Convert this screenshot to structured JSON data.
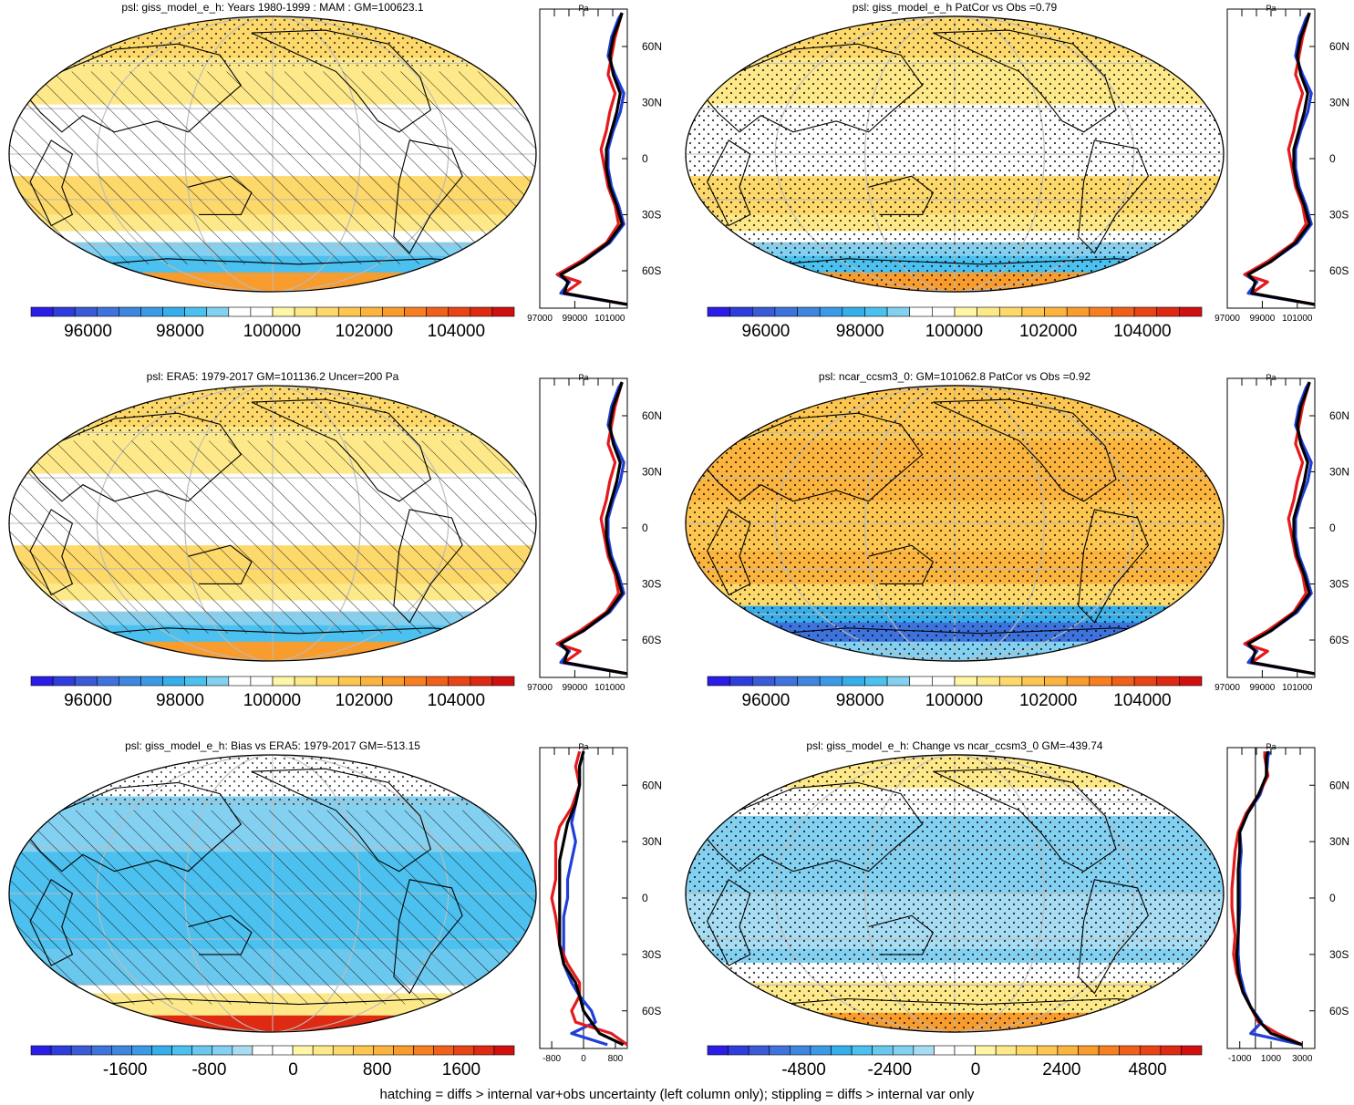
{
  "footnote": "hatching = diffs > internal var+obs uncertainty (left column only); stippling = diffs > internal var only",
  "zonal_axis": {
    "unit": "Pa",
    "lat_labels": [
      "60N",
      "30N",
      "0",
      "30S",
      "60S"
    ],
    "lat_values": [
      60,
      30,
      0,
      -30,
      -60
    ],
    "lat_range": [
      -80,
      80
    ]
  },
  "colors": {
    "model_line": "#e41a1c",
    "obs_line": "#1f3fd8",
    "mean_line": "#000000",
    "map_outline": "#000000",
    "grid": "#bbbbbb"
  },
  "panels": [
    {
      "title": "psl: giss_model_e_h: Years 1980-1999 : MAM : GM=100623.1",
      "kind": "abs",
      "hatch": true,
      "stipple": "partial",
      "colorbar": {
        "levels": [
          95000,
          95500,
          96000,
          96500,
          97000,
          97500,
          98000,
          98500,
          99000,
          99500,
          100000,
          100500,
          101000,
          101500,
          102000,
          102500,
          103000,
          103500,
          104000,
          104500,
          105000,
          105500
        ],
        "labels": [
          "96000",
          "98000",
          "100000",
          "102000",
          "104000"
        ],
        "label_values": [
          96000,
          98000,
          100000,
          102000,
          104000
        ]
      },
      "zonal": {
        "xlim": [
          97000,
          102000
        ],
        "xticks": [
          "97000",
          "99000",
          "101000"
        ],
        "xtick_values": [
          97000,
          99000,
          101000
        ],
        "zero_line": false
      }
    },
    {
      "title": "psl: giss_model_e_h PatCor vs Obs =0.79",
      "kind": "abs",
      "hatch": false,
      "stipple": "full",
      "colorbar": {
        "levels": [
          95000,
          95500,
          96000,
          96500,
          97000,
          97500,
          98000,
          98500,
          99000,
          99500,
          100000,
          100500,
          101000,
          101500,
          102000,
          102500,
          103000,
          103500,
          104000,
          104500,
          105000,
          105500
        ],
        "labels": [
          "96000",
          "98000",
          "100000",
          "102000",
          "104000"
        ],
        "label_values": [
          96000,
          98000,
          100000,
          102000,
          104000
        ]
      },
      "zonal": {
        "xlim": [
          97000,
          102000
        ],
        "xticks": [
          "97000",
          "99000",
          "101000"
        ],
        "xtick_values": [
          97000,
          99000,
          101000
        ],
        "zero_line": false
      }
    },
    {
      "title": "psl: ERA5: 1979-2017 GM=101136.2 Uncer=200 Pa",
      "kind": "abs",
      "hatch": true,
      "stipple": "partial",
      "colorbar": {
        "levels": [
          95000,
          95500,
          96000,
          96500,
          97000,
          97500,
          98000,
          98500,
          99000,
          99500,
          100000,
          100500,
          101000,
          101500,
          102000,
          102500,
          103000,
          103500,
          104000,
          104500,
          105000,
          105500
        ],
        "labels": [
          "96000",
          "98000",
          "100000",
          "102000",
          "104000"
        ],
        "label_values": [
          96000,
          98000,
          100000,
          102000,
          104000
        ]
      },
      "zonal": {
        "xlim": [
          97000,
          102000
        ],
        "xticks": [
          "97000",
          "99000",
          "101000"
        ],
        "xtick_values": [
          97000,
          99000,
          101000
        ],
        "zero_line": false
      }
    },
    {
      "title": "psl: ncar_ccsm3_0: GM=101062.8 PatCor vs Obs =0.92",
      "kind": "abs",
      "hatch": false,
      "stipple": "full",
      "colorbar": {
        "levels": [
          95000,
          95500,
          96000,
          96500,
          97000,
          97500,
          98000,
          98500,
          99000,
          99500,
          100000,
          100500,
          101000,
          101500,
          102000,
          102500,
          103000,
          103500,
          104000,
          104500,
          105000,
          105500
        ],
        "labels": [
          "96000",
          "98000",
          "100000",
          "102000",
          "104000"
        ],
        "label_values": [
          96000,
          98000,
          100000,
          102000,
          104000
        ]
      },
      "zonal": {
        "xlim": [
          97000,
          102000
        ],
        "xticks": [
          "97000",
          "99000",
          "101000"
        ],
        "xtick_values": [
          97000,
          99000,
          101000
        ],
        "zero_line": false
      }
    },
    {
      "title": "psl: giss_model_e_h: Bias vs ERA5: 1979-2017 GM=-513.15",
      "kind": "diff",
      "hatch": true,
      "stipple": "partial",
      "colorbar": {
        "levels": [
          -2400,
          -2200,
          -2000,
          -1800,
          -1600,
          -1400,
          -1200,
          -1000,
          -800,
          -600,
          -400,
          -200,
          0,
          200,
          400,
          600,
          800,
          1000,
          1200,
          1400,
          1600,
          1800,
          2000,
          2200
        ],
        "labels": [
          "-1600",
          "-800",
          "0",
          "800",
          "1600"
        ],
        "label_values": [
          -1600,
          -800,
          0,
          800,
          1600
        ]
      },
      "zonal": {
        "xlim": [
          -1100,
          1100
        ],
        "xticks": [
          "-800",
          "0",
          "800"
        ],
        "xtick_values": [
          -800,
          0,
          800
        ],
        "zero_line": true
      }
    },
    {
      "title": "psl: giss_model_e_h: Change vs ncar_ccsm3_0 GM=-439.74",
      "kind": "diff",
      "hatch": false,
      "stipple": "full",
      "colorbar": {
        "levels": [
          -7200,
          -6600,
          -6000,
          -5400,
          -4800,
          -4200,
          -3600,
          -3000,
          -2400,
          -1800,
          -1200,
          -600,
          0,
          600,
          1200,
          1800,
          2400,
          3000,
          3600,
          4200,
          4800,
          5400,
          6000,
          6600
        ],
        "labels": [
          "-4800",
          "-2400",
          "0",
          "2400",
          "4800"
        ],
        "label_values": [
          -4800,
          -2400,
          0,
          2400,
          4800
        ]
      },
      "zonal": {
        "xlim": [
          -1800,
          3800
        ],
        "xticks": [
          "-1000",
          "1000",
          "3000"
        ],
        "xtick_values": [
          -1000,
          1000,
          3000
        ],
        "zero_line": true
      }
    }
  ]
}
